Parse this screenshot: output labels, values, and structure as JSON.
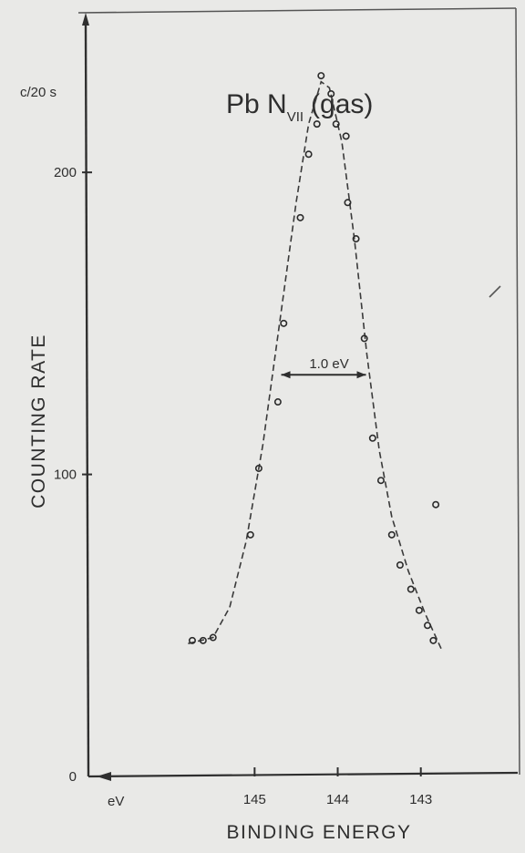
{
  "chart_data": {
    "type": "scatter",
    "title": "Pb N",
    "title_subscript": "VII",
    "title_suffix": "(gas)",
    "ylabel": "COUNTING RATE",
    "y_unit_label": "c/20 s",
    "xlabel": "BINDING ENERGY",
    "x_unit_label": "eV",
    "x_reversed": true,
    "xlim": [
      147.0,
      141.9
    ],
    "ylim": [
      0,
      245
    ],
    "x_ticks": [
      145,
      144,
      143
    ],
    "y_ticks": [
      0,
      100,
      200
    ],
    "grid": false,
    "legend": "none",
    "fwhm": {
      "label": "1.0 eV",
      "x_left": 144.68,
      "x_right": 143.66,
      "y": 133
    },
    "series": [
      {
        "points": [
          {
            "x": 145.75,
            "y": 45
          },
          {
            "x": 145.62,
            "y": 45
          },
          {
            "x": 145.5,
            "y": 46
          },
          {
            "x": 145.05,
            "y": 80
          },
          {
            "x": 144.95,
            "y": 102
          },
          {
            "x": 144.72,
            "y": 124
          },
          {
            "x": 144.65,
            "y": 150
          },
          {
            "x": 144.45,
            "y": 185
          },
          {
            "x": 144.35,
            "y": 206
          },
          {
            "x": 144.25,
            "y": 216
          },
          {
            "x": 144.2,
            "y": 232
          },
          {
            "x": 144.08,
            "y": 226
          },
          {
            "x": 144.02,
            "y": 216
          },
          {
            "x": 143.9,
            "y": 212
          },
          {
            "x": 143.88,
            "y": 190
          },
          {
            "x": 143.78,
            "y": 178
          },
          {
            "x": 143.68,
            "y": 145
          },
          {
            "x": 143.58,
            "y": 112
          },
          {
            "x": 143.48,
            "y": 98
          },
          {
            "x": 143.35,
            "y": 80
          },
          {
            "x": 143.25,
            "y": 70
          },
          {
            "x": 143.12,
            "y": 62
          },
          {
            "x": 143.02,
            "y": 55
          },
          {
            "x": 142.92,
            "y": 50
          },
          {
            "x": 142.85,
            "y": 45
          },
          {
            "x": 142.82,
            "y": 90
          }
        ],
        "curve": [
          {
            "x": 145.8,
            "y": 44
          },
          {
            "x": 145.5,
            "y": 46
          },
          {
            "x": 145.3,
            "y": 56
          },
          {
            "x": 145.1,
            "y": 78
          },
          {
            "x": 144.9,
            "y": 110
          },
          {
            "x": 144.7,
            "y": 150
          },
          {
            "x": 144.5,
            "y": 190
          },
          {
            "x": 144.35,
            "y": 216
          },
          {
            "x": 144.2,
            "y": 230
          },
          {
            "x": 144.1,
            "y": 228
          },
          {
            "x": 143.95,
            "y": 210
          },
          {
            "x": 143.8,
            "y": 178
          },
          {
            "x": 143.65,
            "y": 140
          },
          {
            "x": 143.5,
            "y": 108
          },
          {
            "x": 143.35,
            "y": 86
          },
          {
            "x": 143.15,
            "y": 68
          },
          {
            "x": 142.95,
            "y": 54
          },
          {
            "x": 142.75,
            "y": 42
          }
        ]
      }
    ]
  }
}
